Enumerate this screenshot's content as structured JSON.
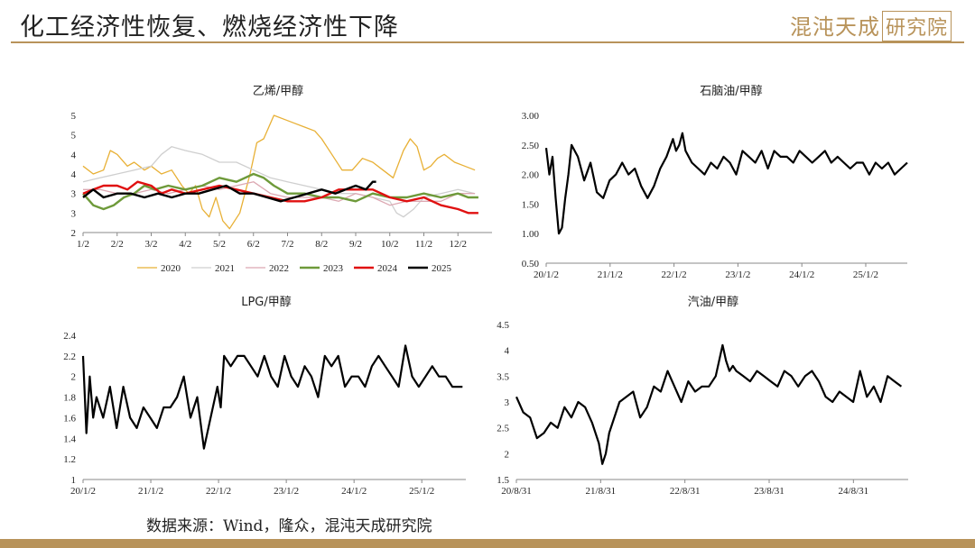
{
  "header": {
    "title": "化工经济性恢复、燃烧经济性下降",
    "logo_text": "混沌天成",
    "logo_box_text": "研究院"
  },
  "footer": {
    "source": "数据来源：Wind，隆众，混沌天成研究院"
  },
  "colors": {
    "accent": "#b8935a",
    "2020": "#e8b035",
    "2021": "#cfcfcf",
    "2022": "#dca8b2",
    "2023": "#6e9a3a",
    "2024": "#e01010",
    "2025": "#000000"
  },
  "chart_data": [
    {
      "id": "ethylene",
      "type": "line",
      "title": "乙烯/甲醇",
      "x_ticks": [
        "1/2",
        "2/2",
        "3/2",
        "4/2",
        "5/2",
        "6/2",
        "7/2",
        "8/2",
        "9/2",
        "10/2",
        "11/2",
        "12/2"
      ],
      "y_tick_labels": [
        "2",
        "3",
        "3",
        "4",
        "4",
        "5",
        "5"
      ],
      "ylim": [
        2,
        5
      ],
      "legend_position": "bottom",
      "series": [
        {
          "name": "2020",
          "x": [
            0,
            0.3,
            0.6,
            0.8,
            1.0,
            1.3,
            1.5,
            1.8,
            2.0,
            2.3,
            2.6,
            2.9,
            3.1,
            3.3,
            3.5,
            3.7,
            3.9,
            4.1,
            4.3,
            4.6,
            4.9,
            5.1,
            5.3,
            5.6,
            5.9,
            6.2,
            6.5,
            6.8,
            7.0,
            7.3,
            7.6,
            7.9,
            8.2,
            8.5,
            8.8,
            9.1,
            9.4,
            9.6,
            9.8,
            10.0,
            10.2,
            10.4,
            10.6,
            10.9,
            11.2,
            11.5
          ],
          "y": [
            3.7,
            3.5,
            3.6,
            4.1,
            4.0,
            3.7,
            3.8,
            3.6,
            3.7,
            3.5,
            3.6,
            3.2,
            3.0,
            3.2,
            2.6,
            2.4,
            2.9,
            2.3,
            2.1,
            2.5,
            3.5,
            4.3,
            4.4,
            5.0,
            4.9,
            4.8,
            4.7,
            4.6,
            4.4,
            4.0,
            3.6,
            3.6,
            3.9,
            3.8,
            3.6,
            3.4,
            4.1,
            4.4,
            4.2,
            3.6,
            3.7,
            3.9,
            4.0,
            3.8,
            3.7,
            3.6
          ]
        },
        {
          "name": "2021",
          "x": [
            0,
            0.5,
            1.0,
            1.5,
            2.0,
            2.3,
            2.6,
            3.0,
            3.5,
            4.0,
            4.5,
            5.0,
            5.5,
            6.0,
            6.5,
            7.0,
            7.5,
            8.0,
            8.5,
            9.0,
            9.2,
            9.4,
            9.7,
            10.0,
            10.5,
            11.0,
            11.5
          ],
          "y": [
            3.3,
            3.4,
            3.5,
            3.6,
            3.7,
            4.0,
            4.2,
            4.1,
            4.0,
            3.8,
            3.8,
            3.6,
            3.4,
            3.3,
            3.2,
            3.1,
            3.0,
            3.0,
            2.9,
            2.8,
            2.5,
            2.4,
            2.6,
            2.9,
            3.0,
            3.1,
            3.0
          ]
        },
        {
          "name": "2022",
          "x": [
            0,
            0.5,
            1.0,
            1.5,
            2.0,
            2.5,
            3.0,
            3.5,
            4.0,
            4.5,
            5.0,
            5.5,
            6.0,
            6.5,
            7.0,
            7.5,
            8.0,
            8.5,
            9.0,
            9.5,
            10.0,
            10.5,
            11.0,
            11.5
          ],
          "y": [
            3.1,
            3.1,
            3.0,
            3.0,
            3.1,
            3.0,
            3.1,
            3.2,
            3.1,
            3.2,
            3.3,
            3.0,
            2.9,
            2.9,
            2.9,
            2.8,
            3.0,
            2.9,
            2.7,
            2.8,
            2.8,
            2.8,
            3.0,
            3.0
          ]
        },
        {
          "name": "2023",
          "x": [
            0,
            0.3,
            0.6,
            0.9,
            1.2,
            1.5,
            1.8,
            2.1,
            2.5,
            3.0,
            3.5,
            4.0,
            4.5,
            5.0,
            5.3,
            5.6,
            6.0,
            6.5,
            7.0,
            7.5,
            8.0,
            8.5,
            9.0,
            9.5,
            10.0,
            10.5,
            11.0,
            11.3,
            11.6
          ],
          "y": [
            3.0,
            2.7,
            2.6,
            2.7,
            2.9,
            3.0,
            3.2,
            3.1,
            3.2,
            3.1,
            3.2,
            3.4,
            3.3,
            3.5,
            3.4,
            3.2,
            3.0,
            3.0,
            2.9,
            2.9,
            2.8,
            3.0,
            2.9,
            2.9,
            3.0,
            2.9,
            3.0,
            2.9,
            2.9
          ]
        },
        {
          "name": "2024",
          "x": [
            0,
            0.3,
            0.6,
            1.0,
            1.3,
            1.6,
            2.0,
            2.3,
            2.6,
            3.0,
            3.5,
            4.0,
            4.5,
            5.0,
            5.5,
            6.0,
            6.5,
            7.0,
            7.5,
            8.0,
            8.5,
            9.0,
            9.5,
            10.0,
            10.5,
            11.0,
            11.3,
            11.6
          ],
          "y": [
            3.0,
            3.1,
            3.2,
            3.2,
            3.1,
            3.3,
            3.2,
            3.0,
            3.1,
            3.0,
            3.1,
            3.2,
            3.1,
            3.0,
            2.9,
            2.8,
            2.8,
            2.9,
            3.1,
            3.1,
            3.1,
            2.9,
            2.8,
            2.9,
            2.7,
            2.6,
            2.5,
            2.5
          ]
        },
        {
          "name": "2025",
          "x": [
            0,
            0.3,
            0.6,
            1.0,
            1.4,
            1.8,
            2.2,
            2.6,
            3.0,
            3.4,
            3.8,
            4.2,
            4.6,
            5.0,
            5.4,
            5.8,
            6.2,
            6.6,
            7.0,
            7.4,
            7.7,
            8.0,
            8.3,
            8.5,
            8.6
          ],
          "y": [
            2.9,
            3.1,
            2.9,
            3.0,
            3.0,
            2.9,
            3.0,
            2.9,
            3.0,
            3.0,
            3.1,
            3.2,
            3.0,
            3.0,
            2.9,
            2.8,
            2.9,
            3.0,
            3.1,
            3.0,
            3.1,
            3.2,
            3.1,
            3.3,
            3.3
          ]
        }
      ]
    },
    {
      "id": "naphtha",
      "type": "line",
      "title": "石脑油/甲醇",
      "x_ticks": [
        "20/1/2",
        "21/1/2",
        "22/1/2",
        "23/1/2",
        "24/1/2",
        "25/1/2"
      ],
      "y_ticks": [
        "0.50",
        "1.00",
        "1.50",
        "2.00",
        "2.50",
        "3.00"
      ],
      "ylim": [
        0.5,
        3.0
      ],
      "series": [
        {
          "name": "",
          "x": [
            0,
            0.05,
            0.1,
            0.15,
            0.2,
            0.25,
            0.3,
            0.35,
            0.4,
            0.45,
            0.5,
            0.6,
            0.7,
            0.8,
            0.9,
            1.0,
            1.1,
            1.2,
            1.3,
            1.4,
            1.5,
            1.6,
            1.7,
            1.8,
            1.9,
            2.0,
            2.05,
            2.1,
            2.15,
            2.2,
            2.3,
            2.4,
            2.5,
            2.6,
            2.7,
            2.8,
            2.9,
            3.0,
            3.1,
            3.2,
            3.3,
            3.4,
            3.5,
            3.6,
            3.7,
            3.8,
            3.9,
            4.0,
            4.1,
            4.2,
            4.3,
            4.4,
            4.5,
            4.6,
            4.7,
            4.8,
            4.9,
            5.0,
            5.1,
            5.2,
            5.3,
            5.4,
            5.5,
            5.6,
            5.7
          ],
          "y": [
            2.45,
            2.0,
            2.3,
            1.6,
            1.0,
            1.1,
            1.6,
            2.0,
            2.5,
            2.4,
            2.3,
            1.9,
            2.2,
            1.7,
            1.6,
            1.9,
            2.0,
            2.2,
            2.0,
            2.1,
            1.8,
            1.6,
            1.8,
            2.1,
            2.3,
            2.6,
            2.4,
            2.5,
            2.7,
            2.4,
            2.2,
            2.1,
            2.0,
            2.2,
            2.1,
            2.3,
            2.2,
            2.0,
            2.4,
            2.3,
            2.2,
            2.4,
            2.1,
            2.4,
            2.3,
            2.3,
            2.2,
            2.4,
            2.3,
            2.2,
            2.3,
            2.4,
            2.2,
            2.3,
            2.2,
            2.1,
            2.2,
            2.2,
            2.0,
            2.2,
            2.1,
            2.2,
            2.0,
            2.1,
            2.2
          ]
        }
      ]
    },
    {
      "id": "lpg",
      "type": "line",
      "title": "LPG/甲醇",
      "x_ticks": [
        "20/1/2",
        "21/1/2",
        "22/1/2",
        "23/1/2",
        "24/1/2",
        "25/1/2"
      ],
      "y_ticks": [
        "1",
        "1.2",
        "1.4",
        "1.6",
        "1.8",
        "2",
        "2.2",
        "2.4"
      ],
      "ylim": [
        1.0,
        2.4
      ],
      "series": [
        {
          "name": "",
          "x": [
            0,
            0.05,
            0.1,
            0.15,
            0.2,
            0.3,
            0.4,
            0.5,
            0.6,
            0.7,
            0.8,
            0.9,
            1.0,
            1.1,
            1.2,
            1.3,
            1.4,
            1.5,
            1.6,
            1.7,
            1.8,
            1.9,
            2.0,
            2.05,
            2.1,
            2.2,
            2.3,
            2.4,
            2.5,
            2.6,
            2.7,
            2.8,
            2.9,
            3.0,
            3.1,
            3.2,
            3.3,
            3.4,
            3.5,
            3.6,
            3.7,
            3.8,
            3.9,
            4.0,
            4.1,
            4.2,
            4.3,
            4.4,
            4.5,
            4.6,
            4.7,
            4.8,
            4.9,
            5.0,
            5.1,
            5.2,
            5.3,
            5.4,
            5.5,
            5.6,
            5.65
          ],
          "y": [
            2.2,
            1.45,
            2.0,
            1.6,
            1.8,
            1.6,
            1.9,
            1.5,
            1.9,
            1.6,
            1.5,
            1.7,
            1.6,
            1.5,
            1.7,
            1.7,
            1.8,
            2.0,
            1.6,
            1.8,
            1.3,
            1.6,
            1.9,
            1.7,
            2.2,
            2.1,
            2.2,
            2.2,
            2.1,
            2.0,
            2.2,
            2.0,
            1.9,
            2.2,
            2.0,
            1.9,
            2.1,
            2.0,
            1.8,
            2.2,
            2.1,
            2.2,
            1.9,
            2.0,
            2.0,
            1.9,
            2.1,
            2.2,
            2.1,
            2.0,
            1.9,
            2.3,
            2.0,
            1.9,
            2.0,
            2.1,
            2.0,
            2.0,
            1.9,
            1.9,
            1.9
          ]
        }
      ]
    },
    {
      "id": "gasoline",
      "type": "line",
      "title": "汽油/甲醇",
      "x_ticks": [
        "20/8/31",
        "21/8/31",
        "22/8/31",
        "23/8/31",
        "24/8/31"
      ],
      "y_ticks": [
        "1.5",
        "2",
        "2.5",
        "3",
        "3.5",
        "4",
        "4.5"
      ],
      "ylim": [
        1.5,
        4.5
      ],
      "series": [
        {
          "name": "",
          "x": [
            0,
            0.1,
            0.2,
            0.3,
            0.4,
            0.5,
            0.6,
            0.7,
            0.8,
            0.9,
            1.0,
            1.1,
            1.2,
            1.25,
            1.3,
            1.35,
            1.4,
            1.5,
            1.6,
            1.7,
            1.8,
            1.9,
            2.0,
            2.1,
            2.2,
            2.3,
            2.4,
            2.5,
            2.6,
            2.7,
            2.8,
            2.9,
            3.0,
            3.05,
            3.1,
            3.15,
            3.2,
            3.3,
            3.4,
            3.5,
            3.6,
            3.7,
            3.8,
            3.9,
            4.0,
            4.1,
            4.2,
            4.3,
            4.4,
            4.5,
            4.6,
            4.7,
            4.8,
            4.9,
            5.0,
            5.1,
            5.2,
            5.3,
            5.4,
            5.5,
            5.6
          ],
          "y": [
            3.1,
            2.8,
            2.7,
            2.3,
            2.4,
            2.6,
            2.5,
            2.9,
            2.7,
            3.0,
            2.9,
            2.6,
            2.2,
            1.8,
            2.0,
            2.4,
            2.6,
            3.0,
            3.1,
            3.2,
            2.7,
            2.9,
            3.3,
            3.2,
            3.6,
            3.3,
            3.0,
            3.4,
            3.2,
            3.3,
            3.3,
            3.5,
            4.1,
            3.8,
            3.6,
            3.7,
            3.6,
            3.5,
            3.4,
            3.6,
            3.5,
            3.4,
            3.3,
            3.6,
            3.5,
            3.3,
            3.5,
            3.6,
            3.4,
            3.1,
            3.0,
            3.2,
            3.1,
            3.0,
            3.6,
            3.1,
            3.3,
            3.0,
            3.5,
            3.4,
            3.3
          ]
        }
      ]
    }
  ]
}
